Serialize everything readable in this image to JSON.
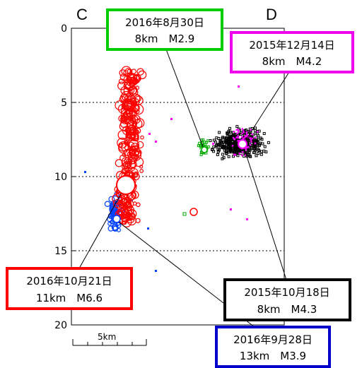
{
  "chart_data": {
    "type": "scatter",
    "title": "",
    "xlabel": "",
    "ylabel": "",
    "ylim": [
      0,
      20
    ],
    "yticks": [
      "0",
      "5",
      "10",
      "15",
      "20"
    ],
    "grid": "dotted horizontal at 5, 10, 15",
    "section_labels": {
      "left": "C",
      "right": "D"
    },
    "scale_bar": {
      "label": "5km",
      "length_km": 5
    },
    "series": [
      {
        "color": "#ff0000",
        "points": "2016 Kumamoto-area cluster, depth ~3–12.5 km, many events"
      },
      {
        "color": "#0040ff",
        "points": "cluster below main shock, depth ~11.5–13.5 km"
      },
      {
        "color": "#00aa00",
        "points": "small cluster, depth ~7–8.5 km"
      },
      {
        "color": "#000000",
        "points": "dense cluster, depth ~6–9.5 km"
      },
      {
        "color": "#ff00ff",
        "points": "scattered events, depth ~6–9 km"
      }
    ],
    "annotations": [
      {
        "date": "2016年8月30日",
        "detail": "8km　M2.9",
        "color": "#00cc00"
      },
      {
        "date": "2015年12月14日",
        "detail": "8km　M4.2",
        "color": "#ee00ee"
      },
      {
        "date": "2016年10月21日",
        "detail": "11km　M6.6",
        "color": "#ff0000"
      },
      {
        "date": "2015年10月18日",
        "detail": "8km　M4.3",
        "color": "#000000"
      },
      {
        "date": "2016年9月28日",
        "detail": "13km　M3.9",
        "color": "#0000cc"
      }
    ]
  }
}
